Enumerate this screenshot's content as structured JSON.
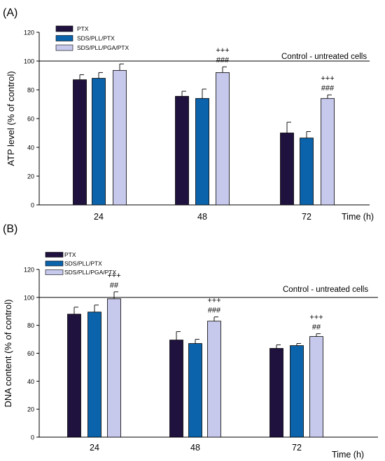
{
  "chart_data": [
    {
      "type": "bar",
      "panel_label": "(A)",
      "categories": [
        "24",
        "48",
        "72"
      ],
      "xlabel": "Time (h)",
      "ylabel": "ATP level (% of control)",
      "ylim": [
        0,
        120
      ],
      "yticks": [
        0,
        20,
        40,
        60,
        80,
        100,
        120
      ],
      "reference_line": {
        "value": 100,
        "label": "Control - untreated cells"
      },
      "series": [
        {
          "name": "PTX",
          "color": "#20123f",
          "values": [
            87,
            75.5,
            50
          ],
          "errors": [
            3.5,
            3.5,
            7.5
          ]
        },
        {
          "name": "SDS/PLL/PTX",
          "color": "#0a63ab",
          "values": [
            88,
            74,
            46.5
          ],
          "errors": [
            4,
            6.5,
            4.5
          ]
        },
        {
          "name": "SDS/PLL/PGA/PTX",
          "color": "#c6c8ec",
          "values": [
            93.5,
            92,
            74
          ],
          "errors": [
            4.5,
            4,
            2.5
          ]
        }
      ],
      "annotations": [
        {
          "series": "SDS/PLL/PGA/PTX",
          "category": "48",
          "lines": [
            "+++",
            "###"
          ]
        },
        {
          "series": "SDS/PLL/PGA/PTX",
          "category": "72",
          "lines": [
            "+++",
            "###"
          ]
        }
      ]
    },
    {
      "type": "bar",
      "panel_label": "(B)",
      "categories": [
        "24",
        "48",
        "72"
      ],
      "xlabel": "Time (h)",
      "ylabel": "DNA content (% of control)",
      "ylim": [
        0,
        120
      ],
      "yticks": [
        0,
        20,
        40,
        60,
        80,
        100,
        120
      ],
      "reference_line": {
        "value": 100,
        "label": "Control - untreated cells"
      },
      "series": [
        {
          "name": "PTX",
          "color": "#20123f",
          "values": [
            88,
            69.5,
            63.5
          ],
          "errors": [
            5,
            6,
            2.5
          ]
        },
        {
          "name": "SDS/PLL/PTX",
          "color": "#0a63ab",
          "values": [
            89.5,
            67,
            65.5
          ],
          "errors": [
            5,
            3,
            1.5
          ]
        },
        {
          "name": "SDS/PLL/PGA/PTX",
          "color": "#c6c8ec",
          "values": [
            99,
            83,
            72
          ],
          "errors": [
            5,
            3,
            2
          ]
        }
      ],
      "annotations": [
        {
          "series": "SDS/PLL/PGA/PTX",
          "category": "24",
          "lines": [
            "+++",
            "##"
          ]
        },
        {
          "series": "SDS/PLL/PGA/PTX",
          "category": "48",
          "lines": [
            "+++",
            "###"
          ]
        },
        {
          "series": "SDS/PLL/PGA/PTX",
          "category": "72",
          "lines": [
            "+++",
            "##"
          ]
        }
      ]
    }
  ]
}
